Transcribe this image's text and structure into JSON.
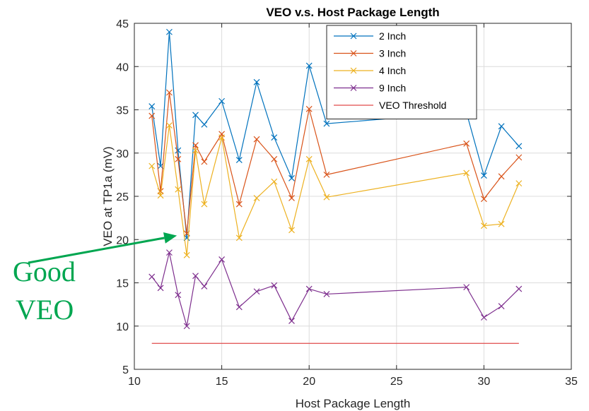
{
  "chart_data": {
    "type": "line",
    "title": "VEO v.s. Host Package Length",
    "xlabel": "Host Package Length",
    "ylabel": "VEO at TP1a (mV)",
    "xlim": [
      10,
      35
    ],
    "ylim": [
      5,
      45
    ],
    "xticks": [
      10,
      15,
      20,
      25,
      30,
      35
    ],
    "yticks": [
      5,
      10,
      15,
      20,
      25,
      30,
      35,
      40,
      45
    ],
    "grid": true,
    "legend_position": "top-right",
    "x": [
      11,
      11.5,
      12,
      12.5,
      13,
      13.5,
      14,
      15,
      16,
      17,
      18,
      19,
      20,
      21,
      29,
      30,
      31,
      32
    ],
    "series": [
      {
        "name": "2 Inch",
        "color": "#0072BD",
        "marker": "x",
        "values": [
          35.4,
          28.5,
          44.0,
          30.3,
          20.2,
          34.4,
          33.3,
          36.0,
          29.2,
          38.2,
          31.8,
          27.1,
          40.1,
          33.4,
          34.7,
          27.4,
          33.1,
          30.8
        ]
      },
      {
        "name": "3 Inch",
        "color": "#D95319",
        "marker": "x",
        "values": [
          34.3,
          25.6,
          37.0,
          29.3,
          20.7,
          30.9,
          29.0,
          32.2,
          24.1,
          31.6,
          29.3,
          24.8,
          35.1,
          27.5,
          31.1,
          24.7,
          27.3,
          29.5
        ]
      },
      {
        "name": "4 Inch",
        "color": "#EDB120",
        "marker": "x",
        "values": [
          28.5,
          25.1,
          33.2,
          25.8,
          18.2,
          30.3,
          24.1,
          31.8,
          20.2,
          24.8,
          26.7,
          21.1,
          29.3,
          24.9,
          27.7,
          21.6,
          21.8,
          26.5
        ]
      },
      {
        "name": "9 Inch",
        "color": "#7E2F8E",
        "marker": "x",
        "values": [
          15.7,
          14.4,
          18.5,
          13.6,
          10.0,
          15.8,
          14.6,
          17.7,
          12.2,
          14.0,
          14.7,
          10.6,
          14.3,
          13.7,
          14.5,
          11.0,
          12.3,
          14.3
        ]
      },
      {
        "name": "VEO Threshold",
        "color": "#E04B4B",
        "marker": "none",
        "x": [
          11,
          32
        ],
        "values": [
          8,
          8
        ]
      }
    ],
    "annotations": [
      {
        "text_lines": [
          "Good",
          "VEO"
        ],
        "color": "#00A650",
        "points_to": {
          "x": 13,
          "y": 20.7
        }
      }
    ]
  }
}
